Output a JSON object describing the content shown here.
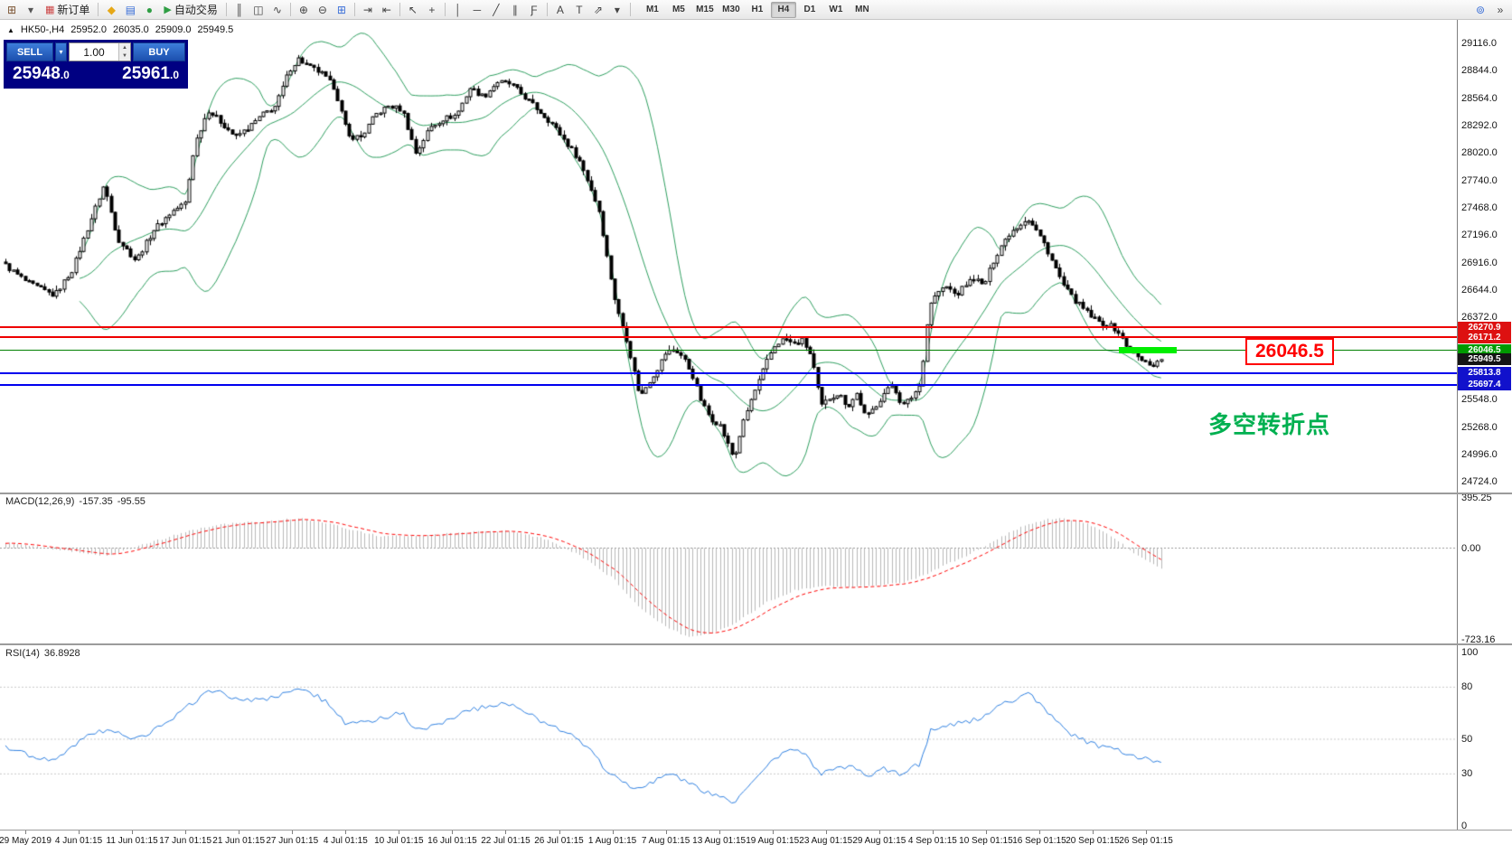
{
  "toolbar": {
    "items": [
      {
        "t": "icon",
        "name": "new-chart-icon",
        "glyph": "⊞",
        "color": "#7a5230"
      },
      {
        "t": "icon",
        "name": "chart-list-dropdown-icon",
        "glyph": "▾",
        "color": "#555555"
      },
      {
        "t": "button",
        "name": "new-order-button",
        "glyph": "▦",
        "glyph_color": "#cc4444",
        "label": "新订单"
      },
      {
        "t": "sep"
      },
      {
        "t": "icon",
        "name": "metaquotes-market-icon",
        "glyph": "◆",
        "color": "#e6a817"
      },
      {
        "t": "icon",
        "name": "data-window-icon",
        "glyph": "▤",
        "color": "#3a6fd8"
      },
      {
        "t": "icon",
        "name": "strategy-navigator-icon",
        "glyph": "●",
        "color": "#2f9e44"
      },
      {
        "t": "button",
        "name": "auto-trading-button",
        "glyph": "▶",
        "glyph_color": "#2f9e44",
        "label": "自动交易"
      },
      {
        "t": "sep"
      },
      {
        "t": "icon",
        "name": "bar-chart-icon",
        "glyph": "║",
        "color": "#444444"
      },
      {
        "t": "icon",
        "name": "candlestick-chart-icon",
        "glyph": "◫",
        "color": "#444444"
      },
      {
        "t": "icon",
        "name": "line-chart-icon",
        "glyph": "∿",
        "color": "#444444"
      },
      {
        "t": "sep"
      },
      {
        "t": "icon",
        "name": "zoom-in-icon",
        "glyph": "⊕",
        "color": "#444444"
      },
      {
        "t": "icon",
        "name": "zoom-out-icon",
        "glyph": "⊖",
        "color": "#444444"
      },
      {
        "t": "icon",
        "name": "tile-windows-icon",
        "glyph": "⊞",
        "color": "#3a6fd8"
      },
      {
        "t": "sep"
      },
      {
        "t": "icon",
        "name": "auto-scroll-icon",
        "glyph": "⇥",
        "color": "#444444"
      },
      {
        "t": "icon",
        "name": "chart-shift-icon",
        "glyph": "⇤",
        "color": "#444444"
      },
      {
        "t": "sep"
      },
      {
        "t": "icon",
        "name": "cursor-icon",
        "glyph": "↖",
        "color": "#444444"
      },
      {
        "t": "icon",
        "name": "crosshair-icon",
        "glyph": "+",
        "color": "#444444"
      },
      {
        "t": "sep"
      },
      {
        "t": "icon",
        "name": "vertical-line-icon",
        "glyph": "│",
        "color": "#444444"
      },
      {
        "t": "icon",
        "name": "horizontal-line-icon",
        "glyph": "─",
        "color": "#444444"
      },
      {
        "t": "icon",
        "name": "trendline-icon",
        "glyph": "╱",
        "color": "#444444"
      },
      {
        "t": "icon",
        "name": "equidistant-channel-icon",
        "glyph": "∥",
        "color": "#444444"
      },
      {
        "t": "icon",
        "name": "fibonacci-icon",
        "glyph": "Ƒ",
        "color": "#444444"
      },
      {
        "t": "sep"
      },
      {
        "t": "icon",
        "name": "text-icon",
        "glyph": "A",
        "color": "#444444"
      },
      {
        "t": "icon",
        "name": "text-label-icon",
        "glyph": "T",
        "color": "#444444"
      },
      {
        "t": "icon",
        "name": "arrows-tool-icon",
        "glyph": "⇗",
        "color": "#444444"
      },
      {
        "t": "icon",
        "name": "objects-dropdown-icon",
        "glyph": "▾",
        "color": "#444444"
      },
      {
        "t": "sep"
      }
    ],
    "timeframes": {
      "items": [
        "M1",
        "M5",
        "M15",
        "M30",
        "H1",
        "H4",
        "D1",
        "W1",
        "MN"
      ],
      "active": "H4"
    },
    "right_items": [
      {
        "name": "search-icon",
        "glyph": "⊚",
        "color": "#3a6fd8"
      },
      {
        "name": "toolbar-overflow-icon",
        "glyph": "»",
        "color": "#444444"
      }
    ]
  },
  "chart_header": {
    "marker": "▲",
    "symbol_timeframe": "HK50-,H4",
    "open": "25952.0",
    "high": "26035.0",
    "low": "25909.0",
    "close": "25949.5"
  },
  "trade_panel": {
    "sell_label": "SELL",
    "buy_label": "BUY",
    "volume": "1.00",
    "dropdown_glyph": "▾",
    "spin_up_glyph": "▲",
    "spin_down_glyph": "▼",
    "sell_price_main": "25948",
    "sell_price_frac": ".0",
    "buy_price_main": "25961",
    "buy_price_frac": ".0"
  },
  "price_axis": {
    "ticks": [
      "29116.0",
      "28844.0",
      "28564.0",
      "28292.0",
      "28020.0",
      "27740.0",
      "27468.0",
      "27196.0",
      "26916.0",
      "26644.0",
      "26372.0",
      "25548.0",
      "25268.0",
      "24996.0",
      "24724.0"
    ],
    "tags": [
      {
        "text": "26270.9",
        "bg": "#dd1111"
      },
      {
        "text": "26171.2",
        "bg": "#dd1111"
      },
      {
        "text": "26046.5",
        "bg": "#009900"
      },
      {
        "text": "25949.5",
        "bg": "#151515"
      },
      {
        "text": "25813.8",
        "bg": "#1111cc"
      },
      {
        "text": "25697.4",
        "bg": "#1111cc"
      }
    ]
  },
  "time_axis": {
    "labels": [
      "29 May 2019",
      "4 Jun 01:15",
      "11 Jun 01:15",
      "17 Jun 01:15",
      "21 Jun 01:15",
      "27 Jun 01:15",
      "4 Jul 01:15",
      "10 Jul 01:15",
      "16 Jul 01:15",
      "22 Jul 01:15",
      "26 Jul 01:15",
      "1 Aug 01:15",
      "7 Aug 01:15",
      "13 Aug 01:15",
      "19 Aug 01:15",
      "23 Aug 01:15",
      "29 Aug 01:15",
      "4 Sep 01:15",
      "10 Sep 01:15",
      "16 Sep 01:15",
      "20 Sep 01:15",
      "26 Sep 01:15"
    ]
  },
  "macd_panel": {
    "label": "MACD(12,26,9)",
    "value1": "-157.35",
    "value2": "-95.55",
    "ticks": [
      "395.25",
      "0.00",
      "-723.16"
    ]
  },
  "rsi_panel": {
    "label": "RSI(14)",
    "value": "36.8928",
    "ticks": [
      "100",
      "80",
      "50",
      "30",
      "0"
    ]
  },
  "chart_data": [
    {
      "type": "candlestick",
      "symbol": "HK50-",
      "timeframe": "H4",
      "ohlc": {
        "open": 25952.0,
        "high": 26035.0,
        "low": 25909.0,
        "close": 25949.5
      },
      "y_axis": {
        "ticks": [
          29116.0,
          28844.0,
          28564.0,
          28292.0,
          28020.0,
          27740.0,
          27468.0,
          27196.0,
          26916.0,
          26644.0,
          26372.0,
          25548.0,
          25268.0,
          24996.0,
          24724.0
        ],
        "visible_range": [
          24620,
          29360
        ]
      },
      "x_axis": {
        "labels_see": "time_axis.labels"
      },
      "candles": {
        "count": 297,
        "first_x": 6,
        "spacing": 4.32,
        "body_width": 3,
        "up_fill": "#ffffff",
        "down_fill": "#000000",
        "outline": "#000000"
      },
      "price_path": [
        [
          5,
          26900
        ],
        [
          30,
          26720
        ],
        [
          60,
          26590
        ],
        [
          80,
          26850
        ],
        [
          100,
          27340
        ],
        [
          115,
          27700
        ],
        [
          130,
          27160
        ],
        [
          150,
          26940
        ],
        [
          170,
          27250
        ],
        [
          190,
          27430
        ],
        [
          205,
          27520
        ],
        [
          215,
          28100
        ],
        [
          230,
          28450
        ],
        [
          245,
          28320
        ],
        [
          260,
          28180
        ],
        [
          275,
          28270
        ],
        [
          290,
          28400
        ],
        [
          305,
          28490
        ],
        [
          320,
          28850
        ],
        [
          330,
          28960
        ],
        [
          340,
          28890
        ],
        [
          355,
          28820
        ],
        [
          370,
          28670
        ],
        [
          385,
          28180
        ],
        [
          400,
          28180
        ],
        [
          415,
          28400
        ],
        [
          430,
          28490
        ],
        [
          445,
          28450
        ],
        [
          460,
          28010
        ],
        [
          475,
          28270
        ],
        [
          490,
          28360
        ],
        [
          505,
          28400
        ],
        [
          520,
          28670
        ],
        [
          535,
          28580
        ],
        [
          550,
          28730
        ],
        [
          565,
          28710
        ],
        [
          580,
          28580
        ],
        [
          595,
          28450
        ],
        [
          610,
          28320
        ],
        [
          625,
          28140
        ],
        [
          640,
          27960
        ],
        [
          652,
          27700
        ],
        [
          663,
          27430
        ],
        [
          672,
          26940
        ],
        [
          682,
          26460
        ],
        [
          692,
          26190
        ],
        [
          700,
          25880
        ],
        [
          708,
          25570
        ],
        [
          716,
          25700
        ],
        [
          726,
          25835
        ],
        [
          736,
          26010
        ],
        [
          746,
          26055
        ],
        [
          756,
          25970
        ],
        [
          766,
          25790
        ],
        [
          776,
          25520
        ],
        [
          786,
          25360
        ],
        [
          796,
          25300
        ],
        [
          806,
          25080
        ],
        [
          812,
          24950
        ],
        [
          820,
          25260
        ],
        [
          830,
          25520
        ],
        [
          840,
          25740
        ],
        [
          850,
          25970
        ],
        [
          858,
          26100
        ],
        [
          868,
          26160
        ],
        [
          878,
          26100
        ],
        [
          888,
          26145
        ],
        [
          898,
          25970
        ],
        [
          908,
          25480
        ],
        [
          918,
          25570
        ],
        [
          928,
          25610
        ],
        [
          938,
          25480
        ],
        [
          948,
          25610
        ],
        [
          958,
          25360
        ],
        [
          968,
          25480
        ],
        [
          978,
          25610
        ],
        [
          988,
          25700
        ],
        [
          998,
          25480
        ],
        [
          1008,
          25570
        ],
        [
          1018,
          25700
        ],
        [
          1028,
          26500
        ],
        [
          1038,
          26630
        ],
        [
          1048,
          26680
        ],
        [
          1058,
          26590
        ],
        [
          1068,
          26700
        ],
        [
          1078,
          26770
        ],
        [
          1088,
          26680
        ],
        [
          1098,
          26920
        ],
        [
          1108,
          27100
        ],
        [
          1118,
          27230
        ],
        [
          1128,
          27300
        ],
        [
          1136,
          27370
        ],
        [
          1146,
          27250
        ],
        [
          1156,
          27100
        ],
        [
          1166,
          26900
        ],
        [
          1176,
          26700
        ],
        [
          1186,
          26570
        ],
        [
          1196,
          26480
        ],
        [
          1206,
          26390
        ],
        [
          1216,
          26320
        ],
        [
          1226,
          26300
        ],
        [
          1236,
          26240
        ],
        [
          1246,
          26080
        ],
        [
          1256,
          25990
        ],
        [
          1266,
          25920
        ],
        [
          1276,
          25900
        ],
        [
          1285,
          25949.5
        ]
      ],
      "overlays": {
        "bollinger": {
          "period": 20,
          "deviation": 2,
          "color": "#2e9e5f"
        }
      },
      "levels": [
        {
          "price": 26270.9,
          "color": "#ee0000",
          "width": 2
        },
        {
          "price": 26171.2,
          "color": "#ee0000",
          "width": 2
        },
        {
          "price": 26046.5,
          "color": "#008000",
          "width": 1
        },
        {
          "price": 25813.8,
          "color": "#0000ee",
          "width": 2
        },
        {
          "price": 25697.4,
          "color": "#0000ee",
          "width": 2
        }
      ],
      "current_price": 25949.5,
      "highlight_segment": {
        "price": 26046.5,
        "x_from": 1238,
        "x_to": 1302,
        "thickness": 7,
        "color": "#00ee00"
      },
      "annotations": [
        {
          "text": "26046.5",
          "type": "boxed-label",
          "color": "#ff0000"
        },
        {
          "text": "多空转折点",
          "type": "text",
          "color": "#00b050"
        }
      ]
    },
    {
      "type": "macd",
      "label": "MACD(12,26,9)",
      "macd_value": -157.35,
      "signal_value": -95.55,
      "y_ticks": [
        395.25,
        0.0,
        -723.16
      ],
      "histogram_color": "#b8b8b8",
      "signal_color": "#ff0000",
      "signal_style": "dashed",
      "zero_line_color": "#9a9a9a",
      "macd_path": [
        [
          0,
          50
        ],
        [
          80,
          -30
        ],
        [
          120,
          -60
        ],
        [
          160,
          30
        ],
        [
          210,
          140
        ],
        [
          250,
          190
        ],
        [
          300,
          215
        ],
        [
          330,
          235
        ],
        [
          360,
          200
        ],
        [
          385,
          150
        ],
        [
          420,
          95
        ],
        [
          470,
          100
        ],
        [
          520,
          125
        ],
        [
          560,
          135
        ],
        [
          600,
          80
        ],
        [
          640,
          -50
        ],
        [
          680,
          -250
        ],
        [
          700,
          -420
        ],
        [
          730,
          -590
        ],
        [
          760,
          -700
        ],
        [
          790,
          -670
        ],
        [
          820,
          -560
        ],
        [
          850,
          -420
        ],
        [
          880,
          -330
        ],
        [
          910,
          -300
        ],
        [
          940,
          -310
        ],
        [
          970,
          -300
        ],
        [
          1000,
          -270
        ],
        [
          1020,
          -220
        ],
        [
          1040,
          -150
        ],
        [
          1070,
          -60
        ],
        [
          1100,
          60
        ],
        [
          1130,
          170
        ],
        [
          1155,
          225
        ],
        [
          1175,
          240
        ],
        [
          1200,
          200
        ],
        [
          1230,
          90
        ],
        [
          1255,
          -40
        ],
        [
          1270,
          -110
        ],
        [
          1285,
          -157.35
        ]
      ]
    },
    {
      "type": "rsi",
      "label": "RSI(14)",
      "value": 36.8928,
      "period": 14,
      "y_ticks": [
        100,
        80,
        50,
        30,
        0
      ],
      "levels": [
        80,
        50,
        30
      ],
      "line_color": "#2d7fe0",
      "level_line_color": "#c8c8c8",
      "rsi_path": [
        [
          0,
          46
        ],
        [
          40,
          40
        ],
        [
          60,
          37
        ],
        [
          90,
          50
        ],
        [
          120,
          56
        ],
        [
          150,
          50
        ],
        [
          180,
          58
        ],
        [
          215,
          72
        ],
        [
          235,
          78
        ],
        [
          260,
          74
        ],
        [
          290,
          72
        ],
        [
          320,
          77
        ],
        [
          335,
          79
        ],
        [
          360,
          72
        ],
        [
          385,
          58
        ],
        [
          420,
          62
        ],
        [
          445,
          65
        ],
        [
          460,
          55
        ],
        [
          490,
          60
        ],
        [
          520,
          67
        ],
        [
          555,
          70
        ],
        [
          575,
          68
        ],
        [
          600,
          60
        ],
        [
          625,
          55
        ],
        [
          650,
          45
        ],
        [
          675,
          30
        ],
        [
          700,
          22
        ],
        [
          720,
          25
        ],
        [
          740,
          30
        ],
        [
          760,
          26
        ],
        [
          780,
          20
        ],
        [
          800,
          16
        ],
        [
          812,
          14
        ],
        [
          830,
          25
        ],
        [
          850,
          36
        ],
        [
          870,
          44
        ],
        [
          890,
          42
        ],
        [
          908,
          30
        ],
        [
          928,
          34
        ],
        [
          948,
          33
        ],
        [
          958,
          28
        ],
        [
          978,
          33
        ],
        [
          998,
          30
        ],
        [
          1018,
          36
        ],
        [
          1030,
          55
        ],
        [
          1050,
          58
        ],
        [
          1068,
          60
        ],
        [
          1090,
          63
        ],
        [
          1108,
          70
        ],
        [
          1128,
          74
        ],
        [
          1136,
          77
        ],
        [
          1156,
          68
        ],
        [
          1176,
          56
        ],
        [
          1196,
          50
        ],
        [
          1216,
          46
        ],
        [
          1236,
          44
        ],
        [
          1256,
          40
        ],
        [
          1270,
          39
        ],
        [
          1285,
          36.89
        ]
      ]
    }
  ]
}
